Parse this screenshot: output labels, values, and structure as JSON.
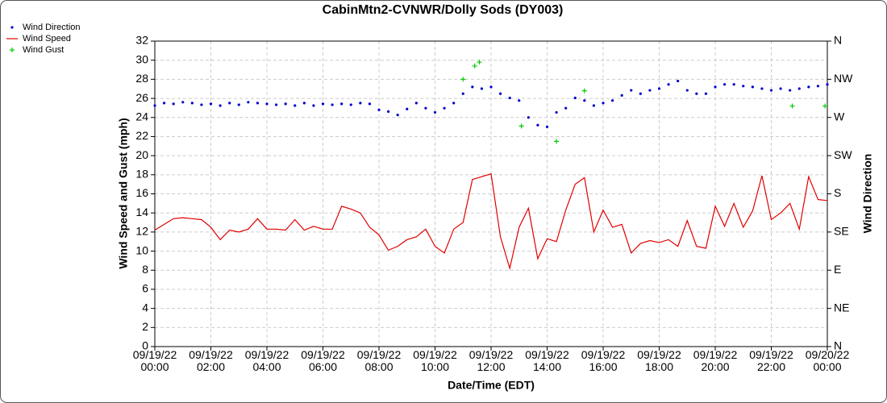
{
  "chart_data": {
    "type": "line",
    "title": "CabinMtn2-CVNWR/Dolly Sods (DY003)",
    "x_label": "Date/Time (EDT)",
    "y_label": "Wind Speed and Gust (mph)",
    "y2_label": "Wind Direction",
    "x": [
      "09/19/22 00:00",
      "09/19/22 00:20",
      "09/19/22 00:40",
      "09/19/22 01:00",
      "09/19/22 01:20",
      "09/19/22 01:40",
      "09/19/22 02:00",
      "09/19/22 02:20",
      "09/19/22 02:40",
      "09/19/22 03:00",
      "09/19/22 03:20",
      "09/19/22 03:40",
      "09/19/22 04:00",
      "09/19/22 04:20",
      "09/19/22 04:40",
      "09/19/22 05:00",
      "09/19/22 05:20",
      "09/19/22 05:40",
      "09/19/22 06:00",
      "09/19/22 06:20",
      "09/19/22 06:40",
      "09/19/22 07:00",
      "09/19/22 07:20",
      "09/19/22 07:40",
      "09/19/22 08:00",
      "09/19/22 08:20",
      "09/19/22 08:40",
      "09/19/22 09:00",
      "09/19/22 09:20",
      "09/19/22 09:40",
      "09/19/22 10:00",
      "09/19/22 10:20",
      "09/19/22 10:40",
      "09/19/22 11:00",
      "09/19/22 11:20",
      "09/19/22 11:40",
      "09/19/22 12:00",
      "09/19/22 12:20",
      "09/19/22 12:40",
      "09/19/22 13:00",
      "09/19/22 13:20",
      "09/19/22 13:40",
      "09/19/22 14:00",
      "09/19/22 14:20",
      "09/19/22 14:40",
      "09/19/22 15:00",
      "09/19/22 15:20",
      "09/19/22 15:40",
      "09/19/22 16:00",
      "09/19/22 16:20",
      "09/19/22 16:40",
      "09/19/22 17:00",
      "09/19/22 17:20",
      "09/19/22 17:40",
      "09/19/22 18:00",
      "09/19/22 18:20",
      "09/19/22 18:40",
      "09/19/22 19:00",
      "09/19/22 19:20",
      "09/19/22 19:40",
      "09/19/22 20:00",
      "09/19/22 20:20",
      "09/19/22 20:40",
      "09/19/22 21:00",
      "09/19/22 21:20",
      "09/19/22 21:40",
      "09/19/22 22:00",
      "09/19/22 22:20",
      "09/19/22 22:40",
      "09/19/22 23:00",
      "09/19/22 23:20",
      "09/19/22 23:40",
      "09/20/22 00:00"
    ],
    "series": [
      {
        "name": "Wind Direction",
        "color": "#0000cc",
        "marker": "dot",
        "axis": "y2",
        "values": [
          284,
          287,
          286,
          288,
          287,
          285,
          286,
          284,
          287,
          285,
          288,
          287,
          286,
          285,
          286,
          284,
          287,
          284,
          286,
          285,
          286,
          285,
          287,
          286,
          279,
          277,
          273,
          280,
          287,
          281,
          276,
          281,
          287,
          298,
          306,
          304,
          306,
          298,
          293,
          290,
          270,
          261,
          259,
          276,
          281,
          293,
          290,
          284,
          287,
          290,
          296,
          302,
          298,
          302,
          304,
          309,
          313,
          302,
          298,
          298,
          306,
          309,
          309,
          307,
          306,
          304,
          302,
          304,
          302,
          304,
          306,
          307,
          309
        ]
      },
      {
        "name": "Wind Speed",
        "color": "#e00000",
        "marker": "line",
        "values": [
          12.2,
          12.8,
          13.4,
          13.5,
          13.4,
          13.3,
          12.5,
          11.2,
          12.2,
          12.0,
          12.3,
          13.4,
          12.3,
          12.3,
          12.2,
          13.3,
          12.2,
          12.6,
          12.3,
          12.3,
          14.7,
          14.4,
          14.0,
          12.5,
          11.7,
          10.1,
          10.5,
          11.2,
          11.5,
          12.3,
          10.5,
          9.8,
          12.3,
          13.0,
          17.5,
          17.8,
          18.1,
          11.5,
          8.2,
          12.5,
          14.5,
          9.2,
          11.3,
          11.0,
          14.3,
          17.0,
          17.7,
          12.0,
          14.3,
          12.5,
          12.8,
          9.8,
          10.8,
          11.1,
          10.9,
          11.2,
          10.5,
          13.2,
          10.5,
          10.3,
          14.7,
          12.6,
          15.0,
          12.5,
          14.2,
          17.9,
          13.3,
          14.0,
          15.0,
          12.3,
          17.8,
          15.4,
          15.3
        ]
      },
      {
        "name": "Wind Gust",
        "color": "#00cc00",
        "marker": "plus",
        "x": [
          "09/19/22 11:00",
          "09/19/22 11:25",
          "09/19/22 11:35",
          "09/19/22 13:05",
          "09/19/22 14:20",
          "09/19/22 15:20",
          "09/19/22 22:45",
          "09/19/22 23:55"
        ],
        "values": [
          28.0,
          29.4,
          29.8,
          23.1,
          21.5,
          26.8,
          25.2,
          25.2
        ]
      }
    ],
    "xlim": [
      "09/19/22 00:00",
      "09/20/22 00:00"
    ],
    "xticks": [
      {
        "value": "09/19/22 00:00",
        "label": "09/19/22\n00:00"
      },
      {
        "value": "09/19/22 02:00",
        "label": "09/19/22\n02:00"
      },
      {
        "value": "09/19/22 04:00",
        "label": "09/19/22\n04:00"
      },
      {
        "value": "09/19/22 06:00",
        "label": "09/19/22\n06:00"
      },
      {
        "value": "09/19/22 08:00",
        "label": "09/19/22\n08:00"
      },
      {
        "value": "09/19/22 10:00",
        "label": "09/19/22\n10:00"
      },
      {
        "value": "09/19/22 12:00",
        "label": "09/19/22\n12:00"
      },
      {
        "value": "09/19/22 14:00",
        "label": "09/19/22\n14:00"
      },
      {
        "value": "09/19/22 16:00",
        "label": "09/19/22\n16:00"
      },
      {
        "value": "09/19/22 18:00",
        "label": "09/19/22\n18:00"
      },
      {
        "value": "09/19/22 20:00",
        "label": "09/19/22\n20:00"
      },
      {
        "value": "09/19/22 22:00",
        "label": "09/19/22\n22:00"
      },
      {
        "value": "09/20/22 00:00",
        "label": "09/20/22\n00:00"
      }
    ],
    "ylim": [
      0,
      32
    ],
    "yticks": [
      0,
      2,
      4,
      6,
      8,
      10,
      12,
      14,
      16,
      18,
      20,
      22,
      24,
      26,
      28,
      30,
      32
    ],
    "y2lim": [
      0,
      360
    ],
    "y2ticks": [
      {
        "value": 0,
        "label": "N"
      },
      {
        "value": 45,
        "label": "NE"
      },
      {
        "value": 90,
        "label": "E"
      },
      {
        "value": 135,
        "label": "SE"
      },
      {
        "value": 180,
        "label": "S"
      },
      {
        "value": 225,
        "label": "SW"
      },
      {
        "value": 270,
        "label": "W"
      },
      {
        "value": 315,
        "label": "NW"
      },
      {
        "value": 360,
        "label": "N"
      }
    ],
    "grid": true,
    "legend": "top-left"
  }
}
